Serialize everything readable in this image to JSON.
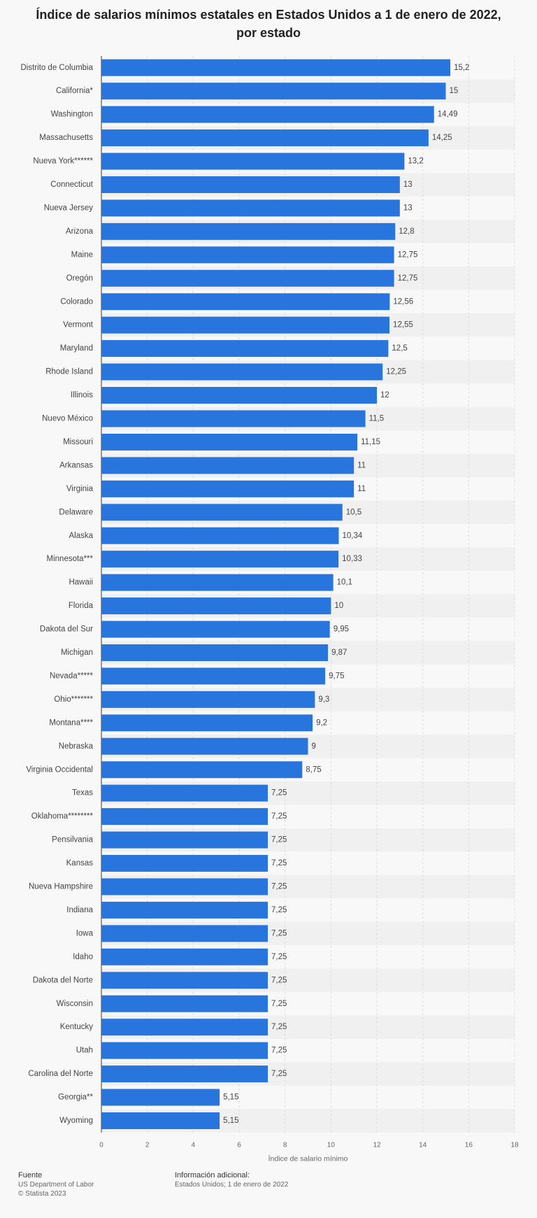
{
  "chart_data": {
    "type": "bar",
    "orientation": "horizontal",
    "title": "Índice de salarios mínimos estatales en Estados Unidos a 1 de enero de 2022, por estado",
    "x_label": "Índice de salario mínimo",
    "color": "#2876dd",
    "categories": [
      "Distrito de Columbia",
      "California*",
      "Washington",
      "Massachusetts",
      "Nueva York******",
      "Connecticut",
      "Nueva Jersey",
      "Arizona",
      "Maine",
      "Oregón",
      "Colorado",
      "Vermont",
      "Maryland",
      "Rhode Island",
      "Illinois",
      "Nuevo México",
      "Missouri",
      "Arkansas",
      "Virginia",
      "Delaware",
      "Alaska",
      "Minnesota***",
      "Hawaii",
      "Florida",
      "Dakota del Sur",
      "Michigan",
      "Nevada*****",
      "Ohio*******",
      "Montana****",
      "Nebraska",
      "Virginia Occidental",
      "Texas",
      "Oklahoma********",
      "Pensilvania",
      "Kansas",
      "Nueva Hampshire",
      "Indiana",
      "Iowa",
      "Idaho",
      "Dakota del Norte",
      "Wisconsin",
      "Kentucky",
      "Utah",
      "Carolina del Norte",
      "Georgia**",
      "Wyoming"
    ],
    "values": [
      15.2,
      15,
      14.49,
      14.25,
      13.2,
      13,
      13,
      12.8,
      12.75,
      12.75,
      12.56,
      12.55,
      12.5,
      12.25,
      12,
      11.5,
      11.15,
      11,
      11,
      10.5,
      10.34,
      10.33,
      10.1,
      10,
      9.95,
      9.87,
      9.75,
      9.3,
      9.2,
      9,
      8.75,
      7.25,
      7.25,
      7.25,
      7.25,
      7.25,
      7.25,
      7.25,
      7.25,
      7.25,
      7.25,
      7.25,
      7.25,
      7.25,
      5.15,
      5.15
    ],
    "value_labels": [
      "15,2",
      "15",
      "14,49",
      "14,25",
      "13,2",
      "13",
      "13",
      "12,8",
      "12,75",
      "12,75",
      "12,56",
      "12,55",
      "12,5",
      "12,25",
      "12",
      "11,5",
      "11,15",
      "11",
      "11",
      "10,5",
      "10,34",
      "10,33",
      "10,1",
      "10",
      "9,95",
      "9,87",
      "9,75",
      "9,3",
      "9,2",
      "9",
      "8,75",
      "7,25",
      "7,25",
      "7,25",
      "7,25",
      "7,25",
      "7,25",
      "7,25",
      "7,25",
      "7,25",
      "7,25",
      "7,25",
      "7,25",
      "7,25",
      "5,15",
      "5,15"
    ],
    "xlim": [
      0,
      18
    ],
    "xticks": [
      0,
      2,
      4,
      6,
      8,
      10,
      12,
      14,
      16,
      18
    ],
    "grid": true
  },
  "footer": {
    "source_heading": "Fuente",
    "source": "US Department of Labor",
    "copyright": "© Statista 2023",
    "info_heading": "Información adicional:",
    "info": "Estados Unidos; 1 de enero de 2022"
  }
}
